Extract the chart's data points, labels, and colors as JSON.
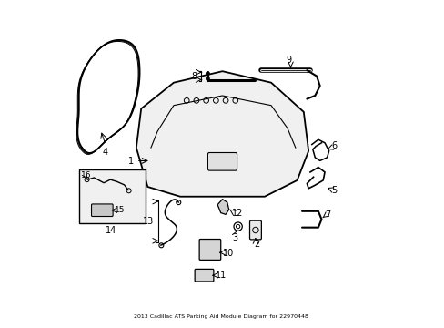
{
  "title": "2013 Cadillac ATS Parking Aid Module Diagram for 22970448",
  "background_color": "#ffffff",
  "line_color": "#000000",
  "figsize": [
    4.89,
    3.6
  ],
  "dpi": 100,
  "xlim": [
    0,
    9
  ],
  "ylim": [
    0,
    10
  ]
}
